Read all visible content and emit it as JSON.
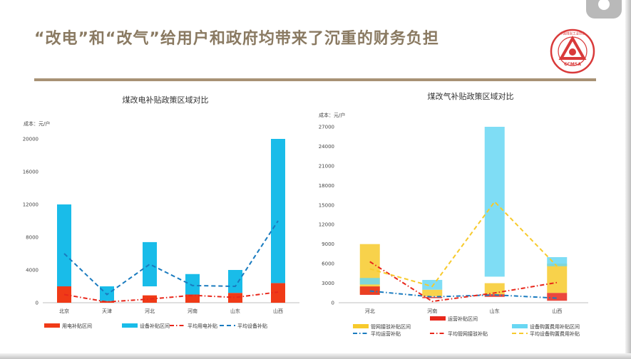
{
  "slide": {
    "title": "“改电”和“改气”给用户和政府均带来了沉重的财务负担",
    "logo_text": "CCMSA",
    "logo_ring_text": "中国煤炭工业协会"
  },
  "colors": {
    "accent": "#a89275",
    "title": "#8a7a62",
    "logo_red": "#d93a3a"
  },
  "chart_data": [
    {
      "type": "bar",
      "title": "煤改电补贴政策区域对比",
      "ylabel": "成本：元/户",
      "categories": [
        "北京",
        "天津",
        "河北",
        "河南",
        "山东",
        "山西"
      ],
      "ylim": [
        0,
        20000
      ],
      "yticks": [
        0,
        4000,
        8000,
        12000,
        16000,
        20000
      ],
      "series": [
        {
          "name": "用电补贴区间",
          "kind": "range",
          "color": "#f03a17",
          "low": [
            0,
            0,
            0,
            0,
            0,
            0
          ],
          "high": [
            2000,
            200,
            900,
            1000,
            1200,
            2400
          ]
        },
        {
          "name": "设备补贴区间",
          "kind": "range",
          "color": "#19bce9",
          "low": [
            2000,
            200,
            2000,
            1000,
            1200,
            2400
          ],
          "high": [
            12000,
            2000,
            7400,
            3500,
            4000,
            20000
          ]
        },
        {
          "name": "平均用电补贴",
          "kind": "line",
          "style": "dashdot",
          "color": "#e8271b",
          "values": [
            1000,
            100,
            450,
            900,
            650,
            1300
          ]
        },
        {
          "name": "平均设备补贴",
          "kind": "line",
          "style": "dash",
          "color": "#1a7bbf",
          "values": [
            6000,
            1000,
            4700,
            2100,
            2000,
            10000
          ]
        }
      ],
      "legend": "bottom"
    },
    {
      "type": "bar",
      "title": "煤改气补贴政策区域对比",
      "ylabel": "成本：元/户",
      "categories": [
        "河北",
        "河南",
        "山东",
        "山西"
      ],
      "ylim": [
        0,
        27000
      ],
      "yticks": [
        0,
        3000,
        6000,
        9000,
        12000,
        15000,
        18000,
        21000,
        24000,
        27000
      ],
      "series": [
        {
          "name": "管网接驳补贴区间",
          "kind": "range",
          "color": "#f7ca2c",
          "low": [
            1300,
            1000,
            1300,
            1500
          ],
          "high": [
            9000,
            2000,
            3000,
            6000
          ]
        },
        {
          "name": "运营补贴区间",
          "kind": "range",
          "color": "#e8271b",
          "low": [
            1200,
            700,
            900,
            300
          ],
          "high": [
            2500,
            900,
            1300,
            1500
          ]
        },
        {
          "name": "设备购置费用补贴区间",
          "kind": "range",
          "color": "#68d7f3",
          "low": [
            2800,
            2000,
            4000,
            5600
          ],
          "high": [
            3800,
            3500,
            27000,
            7000
          ]
        },
        {
          "name": "平均运营补贴",
          "kind": "line",
          "style": "dashdot",
          "color": "#1a7bbf",
          "values": [
            1800,
            900,
            1200,
            700
          ]
        },
        {
          "name": "平均管网接驳补贴",
          "kind": "line",
          "style": "dashdot",
          "color": "#e8271b",
          "values": [
            6300,
            200,
            1500,
            3100
          ]
        },
        {
          "name": "平均设备购置费用补贴",
          "kind": "line",
          "style": "dash",
          "color": "#f7ca2c",
          "values": [
            5200,
            2500,
            15500,
            5600
          ]
        }
      ],
      "legend": "bottom"
    }
  ]
}
